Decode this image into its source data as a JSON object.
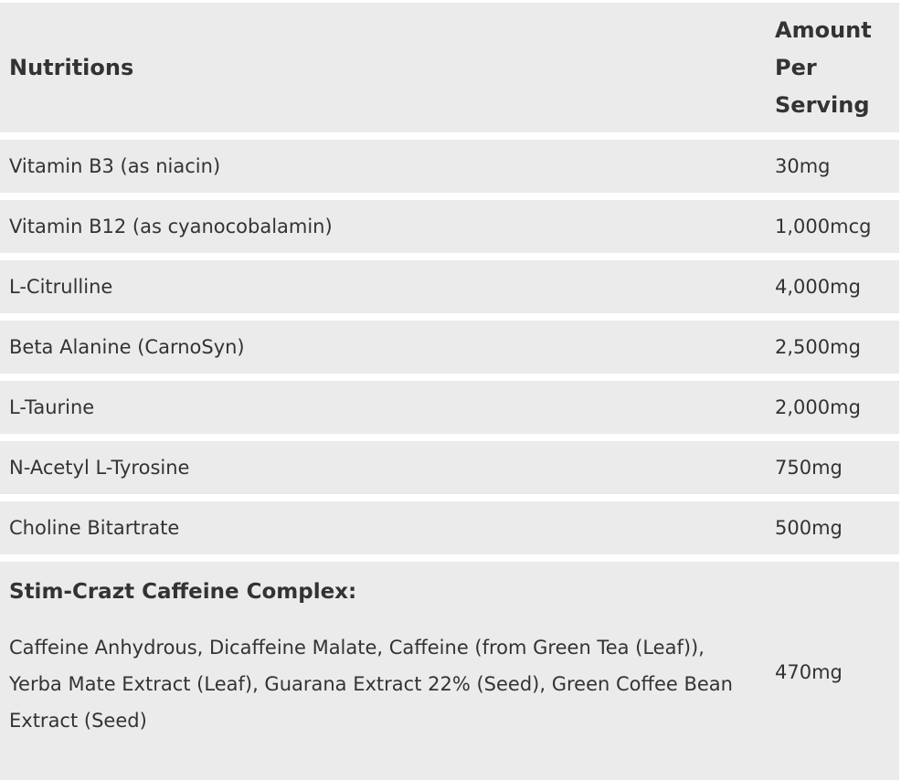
{
  "table": {
    "header": {
      "nutrient": "Nutritions",
      "amount": "Amount Per Serving"
    },
    "rows": [
      {
        "label": "Vitamin B3 (as niacin)",
        "amount": "30mg"
      },
      {
        "label": "Vitamin B12 (as cyanocobalamin)",
        "amount": "1,000mcg"
      },
      {
        "label": "L-Citrulline",
        "amount": "4,000mg"
      },
      {
        "label": "Beta Alanine (CarnoSyn)",
        "amount": "2,500mg"
      },
      {
        "label": "L-Taurine",
        "amount": "2,000mg"
      },
      {
        "label": "N-Acetyl L-Tyrosine",
        "amount": "750mg"
      },
      {
        "label": "Choline Bitartrate",
        "amount": "500mg"
      }
    ],
    "complex": {
      "title": "Stim-Crazt Caffeine Complex:",
      "ingredients": "Caffeine Anhydrous, Dicaffeine Malate, Caffeine (from Green Tea (Leaf)), Yerba Mate Extract (Leaf), Guarana Extract 22% (Seed), Green Coffee Bean Extract (Seed)",
      "amount": "470mg"
    }
  },
  "colors": {
    "row_background": "#ebebeb",
    "separator": "#ffffff",
    "text": "#333333"
  }
}
